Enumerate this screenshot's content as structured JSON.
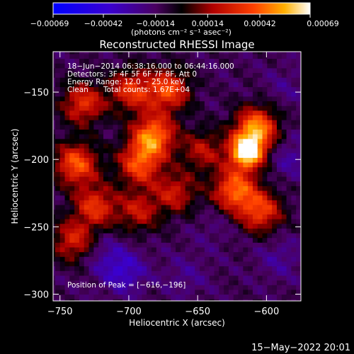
{
  "chart_data": {
    "type": "heatmap",
    "title": "Reconstructed RHESSI Image",
    "xlabel": "Heliocentric X (arcsec)",
    "ylabel": "Heliocentric Y (arcsec)",
    "xlim": [
      -755,
      -575
    ],
    "ylim": [
      -305,
      -120
    ],
    "xticks": [
      -750,
      -700,
      -650,
      -600
    ],
    "yticks": [
      -150,
      -200,
      -250,
      -300
    ],
    "xtick_labels": [
      "−750",
      "−700",
      "−650",
      "−600"
    ],
    "ytick_labels": [
      "−150",
      "−200",
      "−250",
      "−300"
    ],
    "colorbar": {
      "range": [
        -0.00069,
        0.00069
      ],
      "ticks": [
        -0.00069,
        -0.00042,
        -0.00014,
        0.00014,
        0.00042,
        0.00069
      ],
      "tick_labels": [
        "−0.00069",
        "−0.00042",
        "−0.00014",
        "0.00014",
        "0.00042",
        "0.00069"
      ],
      "unit_label": "(photons cm⁻² s⁻¹ asec⁻²)"
    },
    "info_lines": [
      "18−Jun−2014 06:38:16.000 to 06:44:16.000",
      "Detectors: 3F 4F 5F 6F 7F 8F, Att 0",
      "Energy Range: 12.0 − 25.0 keV"
    ],
    "clean_label": "Clean",
    "total_counts": "Total counts: 1.67E+04",
    "peak_label": "Position of Peak = [−616,−196]",
    "sources": [
      {
        "x": -616,
        "y": -196,
        "value": 0.00069
      },
      {
        "x": -609,
        "y": -178,
        "value": 0.00048
      },
      {
        "x": -625,
        "y": -224,
        "value": 0.00042
      },
      {
        "x": -606,
        "y": -240,
        "value": 0.00034
      },
      {
        "x": -684,
        "y": -184,
        "value": 0.00048
      },
      {
        "x": -694,
        "y": -205,
        "value": 0.00036
      },
      {
        "x": -673,
        "y": -150,
        "value": 0.00036
      },
      {
        "x": -700,
        "y": -150,
        "value": 0.0003
      },
      {
        "x": -735,
        "y": -160,
        "value": 0.0003
      },
      {
        "x": -740,
        "y": -205,
        "value": 0.0004
      },
      {
        "x": -726,
        "y": -236,
        "value": 0.0003
      },
      {
        "x": -742,
        "y": -262,
        "value": 0.00026
      },
      {
        "x": -695,
        "y": -240,
        "value": 0.0002
      },
      {
        "x": -668,
        "y": -226,
        "value": 0.00022
      },
      {
        "x": -648,
        "y": -195,
        "value": 0.00018
      },
      {
        "x": -705,
        "y": -285,
        "value": -0.00036
      },
      {
        "x": -720,
        "y": -272,
        "value": -0.00025
      },
      {
        "x": -660,
        "y": -288,
        "value": -0.00022
      },
      {
        "x": -640,
        "y": -253,
        "value": -0.00018
      },
      {
        "x": -592,
        "y": -275,
        "value": -0.00024
      },
      {
        "x": -585,
        "y": -200,
        "value": -0.00026
      },
      {
        "x": -588,
        "y": -148,
        "value": -0.0002
      },
      {
        "x": -758,
        "y": -292,
        "value": -0.00014
      }
    ]
  },
  "footer": {
    "date": "15−May−2022 20:01"
  }
}
